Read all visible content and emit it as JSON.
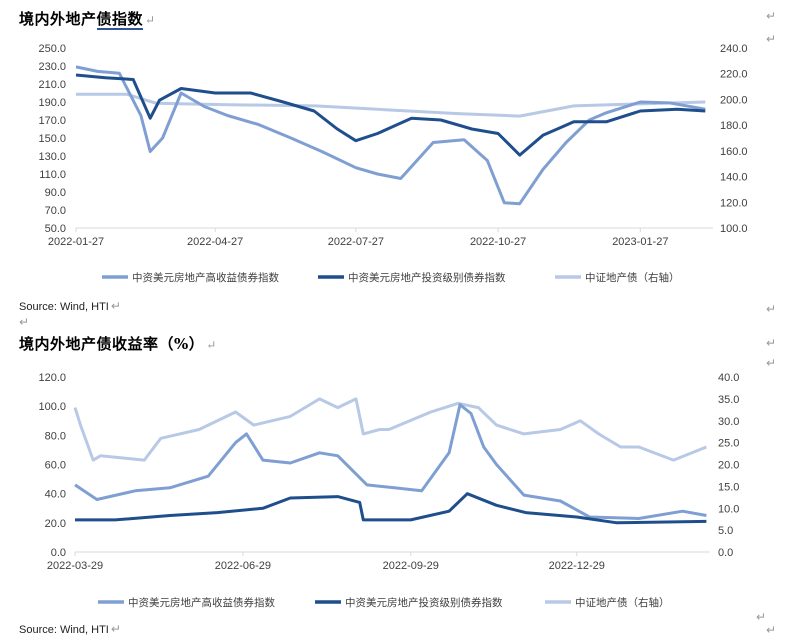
{
  "page": {
    "title1_plain": "境内外地产",
    "title1_underlined": "债指数",
    "title2": "境内外地产债收益率（%）",
    "source1": "Source: Wind, HTI",
    "source2": "Source: Wind, HTI",
    "return_mark": "↵"
  },
  "colors": {
    "high_yield": "#7f9fd3",
    "investment_grade": "#1f4e8c",
    "csi_property": "#b8c9e6",
    "axis": "#d9d9d9"
  },
  "chart_data": [
    {
      "type": "line",
      "title": "境内外地产债指数",
      "x_tick_labels": [
        "2022-01-27",
        "2022-04-27",
        "2022-07-27",
        "2022-10-27",
        "2023-01-27"
      ],
      "y_left": {
        "ticks": [
          "250.0",
          "230.0",
          "210.0",
          "190.0",
          "170.0",
          "150.0",
          "130.0",
          "110.0",
          "90.0",
          "70.0",
          "50.0"
        ],
        "range": [
          50,
          250
        ]
      },
      "y_right": {
        "ticks": [
          "240.0",
          "220.0",
          "200.0",
          "180.0",
          "160.0",
          "140.0",
          "120.0",
          "100.0"
        ],
        "range": [
          100,
          240
        ],
        "label": "右轴"
      },
      "legend": [
        "中资美元房地产高收益债券指数",
        "中资美元房地产投资级别债券指数",
        "中证地产债（右轴）"
      ],
      "legend_position": "bottom",
      "grid": false,
      "series": [
        {
          "name": "中资美元房地产高收益债券指数",
          "axis": "left",
          "x": [
            "2022-01-27",
            "2022-02-10",
            "2022-02-24",
            "2022-03-10",
            "2022-03-16",
            "2022-03-24",
            "2022-04-05",
            "2022-04-20",
            "2022-05-05",
            "2022-05-25",
            "2022-06-15",
            "2022-07-05",
            "2022-07-27",
            "2022-08-10",
            "2022-08-25",
            "2022-09-15",
            "2022-10-05",
            "2022-10-20",
            "2022-10-31",
            "2022-11-10",
            "2022-11-25",
            "2022-12-10",
            "2022-12-25",
            "2023-01-05",
            "2023-01-27",
            "2023-02-15",
            "2023-03-10"
          ],
          "values": [
            229,
            224,
            222,
            175,
            135,
            150,
            200,
            185,
            175,
            165,
            150,
            135,
            117,
            110,
            105,
            145,
            148,
            125,
            78,
            77,
            115,
            145,
            170,
            178,
            190,
            189,
            182
          ]
        },
        {
          "name": "中资美元房地产投资级别债券指数",
          "axis": "left",
          "x": [
            "2022-01-27",
            "2022-02-15",
            "2022-03-05",
            "2022-03-16",
            "2022-03-22",
            "2022-04-05",
            "2022-04-27",
            "2022-05-20",
            "2022-06-10",
            "2022-06-30",
            "2022-07-15",
            "2022-07-27",
            "2022-08-10",
            "2022-09-01",
            "2022-09-20",
            "2022-10-10",
            "2022-10-27",
            "2022-11-10",
            "2022-11-25",
            "2022-12-15",
            "2023-01-05",
            "2023-01-27",
            "2023-02-20",
            "2023-03-10"
          ],
          "values": [
            220,
            217,
            215,
            172,
            192,
            205,
            200,
            200,
            190,
            180,
            160,
            147,
            155,
            172,
            170,
            160,
            155,
            131,
            153,
            168,
            168,
            180,
            182,
            180
          ]
        },
        {
          "name": "中证地产债（右轴）",
          "axis": "right",
          "x": [
            "2022-01-27",
            "2022-03-01",
            "2022-03-20",
            "2022-05-01",
            "2022-07-01",
            "2022-08-15",
            "2022-10-01",
            "2022-11-10",
            "2022-12-15",
            "2023-01-10",
            "2023-03-10"
          ],
          "values": [
            204,
            204,
            197,
            196,
            195,
            192,
            189,
            187,
            195,
            196,
            198
          ]
        }
      ]
    },
    {
      "type": "line",
      "title": "境内外地产债收益率（%）",
      "x_tick_labels": [
        "2022-03-29",
        "2022-06-29",
        "2022-09-29",
        "2022-12-29"
      ],
      "y_left": {
        "ticks": [
          "120.0",
          "100.0",
          "80.0",
          "60.0",
          "40.0",
          "20.0",
          "0.0"
        ],
        "range": [
          0,
          120
        ]
      },
      "y_right": {
        "ticks": [
          "40.0",
          "35.0",
          "30.0",
          "25.0",
          "20.0",
          "15.0",
          "10.0",
          "5.0",
          "0.0"
        ],
        "range": [
          0,
          40
        ],
        "label": "右轴"
      },
      "legend": [
        "中资美元房地产高收益债券指数",
        "中资美元房地产投资级别债券指数",
        "中证地产债（右轴）"
      ],
      "legend_position": "bottom",
      "grid": false,
      "series": [
        {
          "name": "中资美元房地产高收益债券指数",
          "axis": "left",
          "x": [
            "2022-03-29",
            "2022-04-10",
            "2022-05-01",
            "2022-05-20",
            "2022-06-10",
            "2022-06-25",
            "2022-07-01",
            "2022-07-10",
            "2022-07-25",
            "2022-08-10",
            "2022-08-20",
            "2022-09-05",
            "2022-09-20",
            "2022-10-05",
            "2022-10-20",
            "2022-10-26",
            "2022-11-01",
            "2022-11-08",
            "2022-11-15",
            "2022-11-30",
            "2022-12-20",
            "2023-01-05",
            "2023-02-01",
            "2023-02-25",
            "2023-03-10"
          ],
          "values": [
            46,
            36,
            42,
            44,
            52,
            75,
            81,
            63,
            61,
            68,
            66,
            46,
            44,
            42,
            68,
            101,
            95,
            72,
            60,
            39,
            35,
            24,
            23,
            28,
            25
          ]
        },
        {
          "name": "中资美元房地产投资级别债券指数",
          "axis": "left",
          "x": [
            "2022-03-29",
            "2022-04-20",
            "2022-05-20",
            "2022-06-15",
            "2022-07-10",
            "2022-07-25",
            "2022-08-20",
            "2022-09-01",
            "2022-09-03",
            "2022-09-29",
            "2022-10-20",
            "2022-10-30",
            "2022-11-15",
            "2022-12-01",
            "2022-12-29",
            "2023-01-20",
            "2023-03-10"
          ],
          "values": [
            22,
            22,
            25,
            27,
            30,
            37,
            38,
            34,
            22,
            22,
            28,
            40,
            32,
            27,
            24,
            20,
            21
          ]
        },
        {
          "name": "中证地产债（右轴）",
          "axis": "right",
          "x": [
            "2022-03-29",
            "2022-04-01",
            "2022-04-08",
            "2022-04-12",
            "2022-05-06",
            "2022-05-15",
            "2022-06-05",
            "2022-06-25",
            "2022-07-05",
            "2022-07-25",
            "2022-08-10",
            "2022-08-20",
            "2022-08-30",
            "2022-09-03",
            "2022-09-12",
            "2022-09-17",
            "2022-10-10",
            "2022-10-25",
            "2022-11-05",
            "2022-11-15",
            "2022-11-30",
            "2022-12-20",
            "2022-12-31",
            "2023-01-10",
            "2023-01-22",
            "2023-02-01",
            "2023-02-20",
            "2023-03-10"
          ],
          "values": [
            33,
            29,
            21,
            22,
            21,
            26,
            28,
            32,
            29,
            31,
            35,
            33,
            35,
            27,
            28,
            28,
            32,
            34,
            33,
            29,
            27,
            28,
            30,
            27,
            24,
            24,
            21,
            24
          ]
        }
      ]
    }
  ]
}
